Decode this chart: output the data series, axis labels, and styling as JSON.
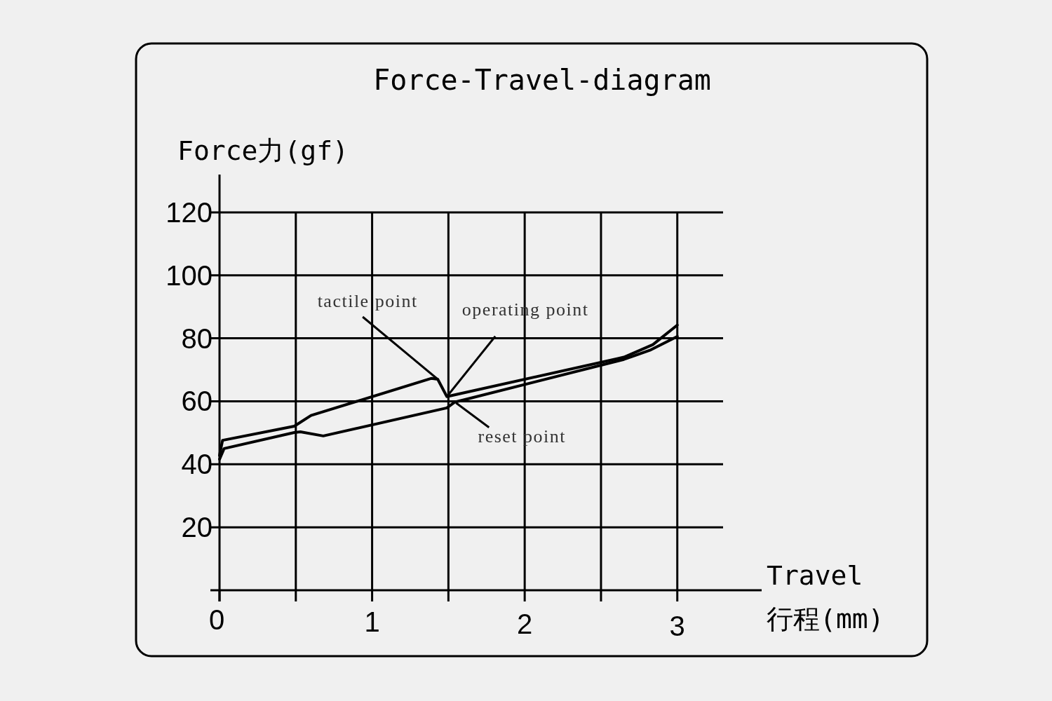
{
  "chart_data": {
    "type": "line",
    "title": "Force-Travel-diagram",
    "ylabel": "Force力(gf)",
    "xlabel": "Travel\n行程(mm)",
    "series": [
      {
        "color": "#000000",
        "x": [
          0,
          0.02,
          0.49,
          0.6,
          1.39,
          1.43,
          1.49,
          2.65,
          2.84,
          3.0
        ],
        "values": [
          42.8,
          47.6,
          52.1,
          55.5,
          67.3,
          67.0,
          61.5,
          74.0,
          78.0,
          84.2
        ]
      },
      {
        "color": "#000000",
        "x": [
          0,
          0.03,
          0.49,
          0.53,
          0.68,
          1.49,
          1.54,
          2.65,
          2.82,
          3.0
        ],
        "values": [
          41.6,
          45.0,
          50.1,
          50.3,
          49.0,
          57.9,
          59.7,
          73.3,
          76.2,
          80.6
        ]
      }
    ],
    "xlim": [
      0,
      3.3
    ],
    "ylim": [
      0,
      132
    ],
    "xticks": [
      0,
      {
        "value": 0.5,
        "label": null
      },
      1,
      {
        "value": 1.5,
        "label": null
      },
      2,
      {
        "value": 2.5,
        "label": null
      },
      3
    ],
    "yticks": [
      {
        "value": 0,
        "label": null
      },
      20,
      40,
      60,
      80,
      100,
      120
    ],
    "grid": true,
    "marker": "none",
    "line_style": "solid",
    "annotations": [
      {
        "text": "tactile point",
        "x": 1.43,
        "y": 67.0
      },
      {
        "text": "operating point",
        "x": 1.49,
        "y": 61.5
      },
      {
        "text": "reset point",
        "x": 1.55,
        "y": 59.5
      }
    ]
  }
}
